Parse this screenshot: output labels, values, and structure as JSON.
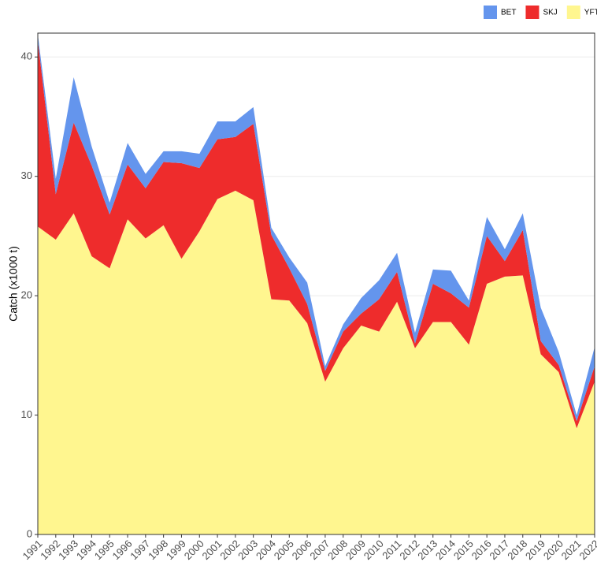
{
  "chart_data": {
    "type": "stacked_area",
    "y_label": "Catch (x1000 t)",
    "x": [
      1991,
      1992,
      1993,
      1994,
      1995,
      1996,
      1997,
      1998,
      1999,
      2000,
      2001,
      2002,
      2003,
      2004,
      2005,
      2006,
      2007,
      2008,
      2009,
      2010,
      2011,
      2012,
      2013,
      2014,
      2015,
      2016,
      2017,
      2018,
      2019,
      2020,
      2021,
      2022
    ],
    "series": [
      {
        "name": "BET",
        "color": "#6495ed",
        "values": [
          0.5,
          1.3,
          3.8,
          1.6,
          1.0,
          1.8,
          1.2,
          0.9,
          1.0,
          1.2,
          1.5,
          1.3,
          1.4,
          0.6,
          0.9,
          1.8,
          0.4,
          0.6,
          1.3,
          1.6,
          1.6,
          0.9,
          1.2,
          1.9,
          0.6,
          1.6,
          1.0,
          1.4,
          2.8,
          1.1,
          0.5,
          1.6
        ]
      },
      {
        "name": "SKJ",
        "color": "#ee2c2c",
        "values": [
          15.6,
          3.8,
          7.6,
          7.6,
          4.5,
          4.6,
          4.2,
          5.3,
          8.0,
          5.3,
          5.0,
          4.5,
          6.4,
          5.4,
          2.7,
          1.6,
          0.9,
          1.4,
          1.0,
          2.7,
          2.5,
          0.4,
          3.2,
          2.4,
          3.1,
          4.0,
          1.3,
          3.8,
          1.1,
          0.6,
          0.6,
          1.3
        ]
      },
      {
        "name": "YFT",
        "color": "#fff68f",
        "values": [
          25.8,
          24.7,
          26.9,
          23.3,
          22.3,
          26.4,
          24.8,
          25.9,
          23.1,
          25.4,
          28.1,
          28.8,
          28.0,
          19.7,
          19.6,
          17.7,
          12.8,
          15.6,
          17.5,
          17.0,
          19.5,
          15.6,
          17.8,
          17.8,
          15.9,
          21.0,
          21.6,
          21.7,
          15.1,
          13.6,
          8.9,
          12.8
        ]
      }
    ],
    "xlim": [
      1991,
      2022
    ],
    "ylim": [
      0,
      42
    ],
    "yticks": [
      0,
      10,
      20,
      30,
      40
    ],
    "grid": true,
    "legend": "top-right"
  }
}
